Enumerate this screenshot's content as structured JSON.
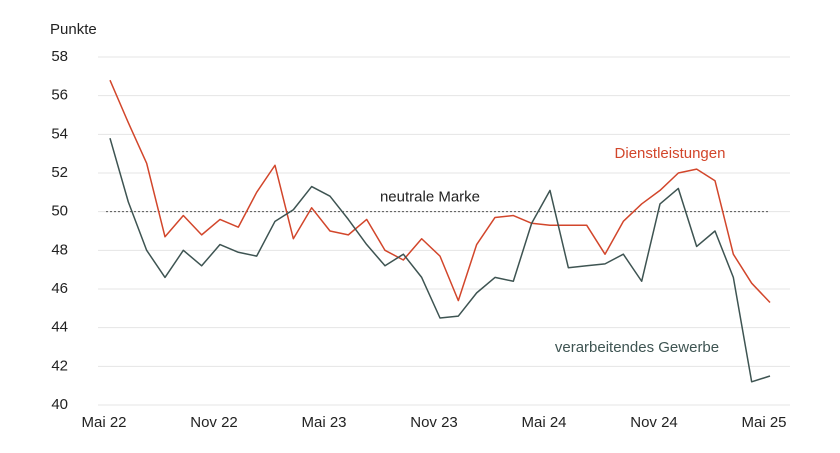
{
  "chart_data": {
    "type": "line",
    "y_label": "Punkte",
    "categories": [
      "Mai 22",
      null,
      null,
      null,
      null,
      null,
      "Nov 22",
      null,
      null,
      null,
      null,
      null,
      "Mai 23",
      null,
      null,
      null,
      null,
      null,
      "Nov 23",
      null,
      null,
      null,
      null,
      null,
      "Mai 24",
      null,
      null,
      null,
      null,
      null,
      "Nov 24",
      null,
      null,
      null,
      null,
      null,
      "Mai 25"
    ],
    "series": [
      {
        "name": "Dienstleistungen",
        "color": "#d2462b",
        "values": [
          56.8,
          54.6,
          52.5,
          48.7,
          49.8,
          48.8,
          49.6,
          49.2,
          51.0,
          52.4,
          48.6,
          50.2,
          49.0,
          48.8,
          49.6,
          48.0,
          47.5,
          48.6,
          47.7,
          45.4,
          48.3,
          49.7,
          49.8,
          49.4,
          49.3,
          49.3,
          49.3,
          47.8,
          49.5,
          50.4,
          51.1,
          52.0,
          52.2,
          51.6,
          47.8,
          46.3,
          45.3
        ]
      },
      {
        "name": "verarbeitendes Gewerbe",
        "color": "#3e5452",
        "values": [
          53.8,
          50.5,
          48.0,
          46.6,
          48.0,
          47.2,
          48.3,
          47.9,
          47.7,
          49.5,
          50.1,
          51.3,
          50.8,
          49.6,
          48.3,
          47.2,
          47.8,
          46.6,
          44.5,
          44.6,
          45.8,
          46.6,
          46.4,
          49.4,
          51.1,
          47.1,
          47.2,
          47.3,
          47.8,
          46.4,
          50.4,
          51.2,
          48.2,
          49.0,
          46.6,
          41.2,
          41.5
        ]
      }
    ],
    "reference": {
      "value": 50,
      "label": "neutrale Marke"
    },
    "ylim": [
      40,
      58
    ],
    "yticks": [
      40,
      42,
      44,
      46,
      48,
      50,
      52,
      54,
      56,
      58
    ],
    "grid": true
  }
}
